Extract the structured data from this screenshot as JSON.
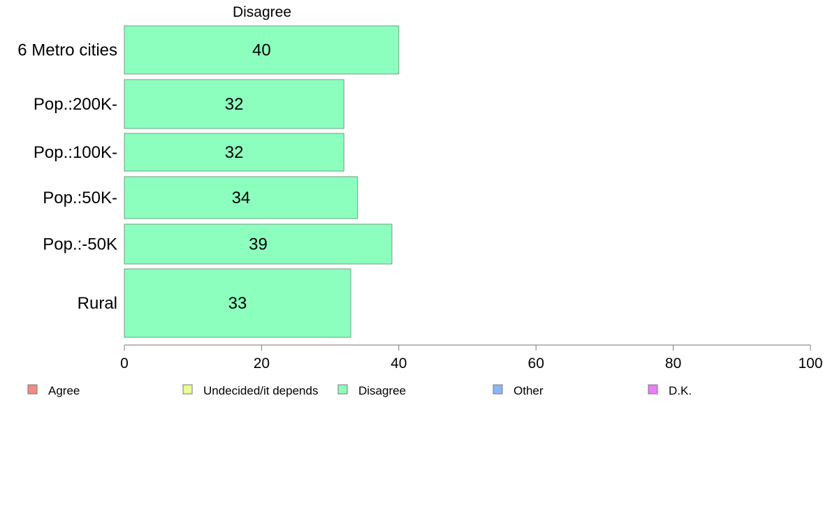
{
  "chart_data": {
    "type": "bar",
    "orientation": "horizontal",
    "title": "Disagree",
    "categories": [
      "6 Metro cities",
      "Pop.:200K-",
      "Pop.:100K-",
      "Pop.:50K-",
      "Pop.:-50K",
      "Rural"
    ],
    "values": [
      40,
      32,
      32,
      34,
      39,
      33
    ],
    "xlim": [
      0,
      100
    ],
    "xticks": [
      0,
      20,
      40,
      60,
      80,
      100
    ],
    "bar_color": "#8cffbf",
    "grid": false,
    "legend_placement": "bottom",
    "legend": [
      {
        "label": "Agree",
        "color": "#f28b84"
      },
      {
        "label": "Undecided/it depends",
        "color": "#eaff8f"
      },
      {
        "label": "Disagree",
        "color": "#8cffbf"
      },
      {
        "label": "Other",
        "color": "#8cb4ff"
      },
      {
        "label": "D.K.",
        "color": "#ec7cff"
      }
    ]
  }
}
